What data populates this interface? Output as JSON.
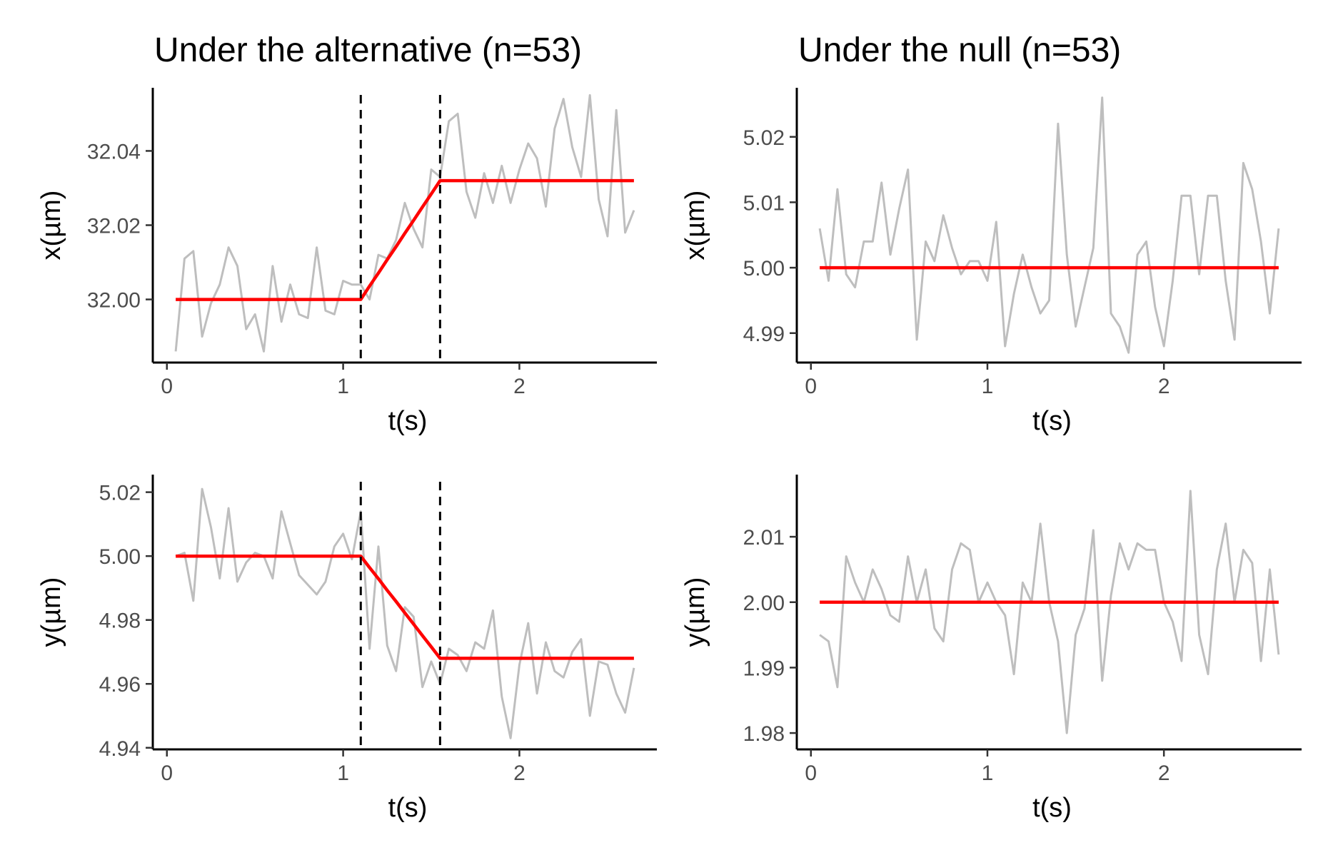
{
  "colors": {
    "observed": "#bebebe",
    "fit": "#ff0000",
    "changepoint": "#000000",
    "axis": "#000000",
    "tick_text": "#4d4d4d"
  },
  "chart_data": [
    {
      "type": "line",
      "title": "Under the alternative (n=53)",
      "xlabel": "t(s)",
      "ylabel": "x(µm)",
      "xlim": [
        -0.08,
        2.78
      ],
      "ylim": [
        31.983,
        32.057
      ],
      "x_ticks": [
        0,
        1,
        2
      ],
      "y_ticks": [
        32.0,
        32.02,
        32.04
      ],
      "x_tick_labels": [
        "0",
        "1",
        "2"
      ],
      "y_tick_labels": [
        "32.00",
        "32.02",
        "32.04"
      ],
      "grid": false,
      "legend": "none",
      "changepoints": [
        1.1,
        1.55
      ],
      "x": [
        0.05,
        0.1,
        0.15,
        0.2,
        0.25,
        0.3,
        0.35,
        0.4,
        0.45,
        0.5,
        0.55,
        0.6,
        0.65,
        0.7,
        0.75,
        0.8,
        0.85,
        0.9,
        0.95,
        1.0,
        1.05,
        1.1,
        1.15,
        1.2,
        1.25,
        1.3,
        1.35,
        1.4,
        1.45,
        1.5,
        1.55,
        1.6,
        1.65,
        1.7,
        1.75,
        1.8,
        1.85,
        1.9,
        1.95,
        2.0,
        2.05,
        2.1,
        2.15,
        2.2,
        2.25,
        2.3,
        2.35,
        2.4,
        2.45,
        2.5,
        2.55,
        2.6,
        2.65
      ],
      "series": [
        {
          "role": "observed",
          "values": [
            31.986,
            32.011,
            32.013,
            31.99,
            31.999,
            32.004,
            32.014,
            32.009,
            31.992,
            31.996,
            31.986,
            32.009,
            31.994,
            32.004,
            31.996,
            31.995,
            32.014,
            31.997,
            31.996,
            32.005,
            32.004,
            32.004,
            32.0,
            32.012,
            32.011,
            32.016,
            32.026,
            32.019,
            32.014,
            32.035,
            32.033,
            32.048,
            32.05,
            32.029,
            32.022,
            32.034,
            32.026,
            32.036,
            32.026,
            32.035,
            32.042,
            32.038,
            32.025,
            32.046,
            32.054,
            32.041,
            32.033,
            32.055,
            32.027,
            32.017,
            32.051,
            32.018,
            32.024
          ]
        },
        {
          "role": "fit",
          "values": [
            32.0,
            32.0,
            32.0,
            32.0,
            32.0,
            32.0,
            32.0,
            32.0,
            32.0,
            32.0,
            32.0,
            32.0,
            32.0,
            32.0,
            32.0,
            32.0,
            32.0,
            32.0,
            32.0,
            32.0,
            32.0,
            32.0,
            32.0036,
            32.0071,
            32.0107,
            32.0142,
            32.0178,
            32.0213,
            32.0249,
            32.0284,
            32.032,
            32.032,
            32.032,
            32.032,
            32.032,
            32.032,
            32.032,
            32.032,
            32.032,
            32.032,
            32.032,
            32.032,
            32.032,
            32.032,
            32.032,
            32.032,
            32.032,
            32.032,
            32.032,
            32.032,
            32.032,
            32.032,
            32.032
          ]
        }
      ]
    },
    {
      "type": "line",
      "title": "Under the null (n=53)",
      "xlabel": "t(s)",
      "ylabel": "x(µm)",
      "xlim": [
        -0.08,
        2.78
      ],
      "ylim": [
        4.9855,
        5.0275
      ],
      "x_ticks": [
        0,
        1,
        2
      ],
      "y_ticks": [
        4.99,
        5.0,
        5.01,
        5.02
      ],
      "x_tick_labels": [
        "0",
        "1",
        "2"
      ],
      "y_tick_labels": [
        "4.99",
        "5.00",
        "5.01",
        "5.02"
      ],
      "grid": false,
      "legend": "none",
      "changepoints": [],
      "x": [
        0.05,
        0.1,
        0.15,
        0.2,
        0.25,
        0.3,
        0.35,
        0.4,
        0.45,
        0.5,
        0.55,
        0.6,
        0.65,
        0.7,
        0.75,
        0.8,
        0.85,
        0.9,
        0.95,
        1.0,
        1.05,
        1.1,
        1.15,
        1.2,
        1.25,
        1.3,
        1.35,
        1.4,
        1.45,
        1.5,
        1.55,
        1.6,
        1.65,
        1.7,
        1.75,
        1.8,
        1.85,
        1.9,
        1.95,
        2.0,
        2.05,
        2.1,
        2.15,
        2.2,
        2.25,
        2.3,
        2.35,
        2.4,
        2.45,
        2.5,
        2.55,
        2.6,
        2.65
      ],
      "series": [
        {
          "role": "observed",
          "values": [
            5.006,
            4.998,
            5.012,
            4.999,
            4.997,
            5.004,
            5.004,
            5.013,
            5.002,
            5.009,
            5.015,
            4.989,
            5.004,
            5.001,
            5.008,
            5.003,
            4.999,
            5.001,
            5.001,
            4.998,
            5.007,
            4.988,
            4.996,
            5.002,
            4.997,
            4.993,
            4.995,
            5.022,
            5.002,
            4.991,
            4.997,
            5.003,
            5.026,
            4.993,
            4.991,
            4.987,
            5.002,
            5.004,
            4.994,
            4.988,
            4.998,
            5.011,
            5.011,
            4.999,
            5.011,
            5.011,
            4.998,
            4.989,
            5.016,
            5.012,
            5.004,
            4.993,
            5.006
          ]
        },
        {
          "role": "fit",
          "values": [
            5.0,
            5.0,
            5.0,
            5.0,
            5.0,
            5.0,
            5.0,
            5.0,
            5.0,
            5.0,
            5.0,
            5.0,
            5.0,
            5.0,
            5.0,
            5.0,
            5.0,
            5.0,
            5.0,
            5.0,
            5.0,
            5.0,
            5.0,
            5.0,
            5.0,
            5.0,
            5.0,
            5.0,
            5.0,
            5.0,
            5.0,
            5.0,
            5.0,
            5.0,
            5.0,
            5.0,
            5.0,
            5.0,
            5.0,
            5.0,
            5.0,
            5.0,
            5.0,
            5.0,
            5.0,
            5.0,
            5.0,
            5.0,
            5.0,
            5.0,
            5.0,
            5.0,
            5.0
          ]
        }
      ]
    },
    {
      "type": "line",
      "title": "",
      "xlabel": "t(s)",
      "ylabel": "y(µm)",
      "xlim": [
        -0.08,
        2.78
      ],
      "ylim": [
        4.9395,
        5.0255
      ],
      "x_ticks": [
        0,
        1,
        2
      ],
      "y_ticks": [
        4.94,
        4.96,
        4.98,
        5.0,
        5.02
      ],
      "x_tick_labels": [
        "0",
        "1",
        "2"
      ],
      "y_tick_labels": [
        "4.94",
        "4.96",
        "4.98",
        "5.00",
        "5.02"
      ],
      "grid": false,
      "legend": "none",
      "changepoints": [
        1.1,
        1.55
      ],
      "x": [
        0.05,
        0.1,
        0.15,
        0.2,
        0.25,
        0.3,
        0.35,
        0.4,
        0.45,
        0.5,
        0.55,
        0.6,
        0.65,
        0.7,
        0.75,
        0.8,
        0.85,
        0.9,
        0.95,
        1.0,
        1.05,
        1.1,
        1.15,
        1.2,
        1.25,
        1.3,
        1.35,
        1.4,
        1.45,
        1.5,
        1.55,
        1.6,
        1.65,
        1.7,
        1.75,
        1.8,
        1.85,
        1.9,
        1.95,
        2.0,
        2.05,
        2.1,
        2.15,
        2.2,
        2.25,
        2.3,
        2.35,
        2.4,
        2.45,
        2.5,
        2.55,
        2.6,
        2.65
      ],
      "series": [
        {
          "role": "observed",
          "values": [
            5.0,
            5.001,
            4.986,
            5.021,
            5.009,
            4.993,
            5.015,
            4.992,
            4.998,
            5.001,
            5.0,
            4.993,
            5.014,
            5.004,
            4.994,
            4.991,
            4.988,
            4.992,
            5.003,
            5.007,
            4.999,
            5.014,
            4.971,
            5.003,
            4.972,
            4.964,
            4.984,
            4.981,
            4.959,
            4.967,
            4.96,
            4.971,
            4.969,
            4.964,
            4.973,
            4.971,
            4.983,
            4.956,
            4.943,
            4.966,
            4.979,
            4.957,
            4.973,
            4.964,
            4.962,
            4.97,
            4.974,
            4.95,
            4.967,
            4.966,
            4.957,
            4.951,
            4.965
          ]
        },
        {
          "role": "fit",
          "values": [
            5.0,
            5.0,
            5.0,
            5.0,
            5.0,
            5.0,
            5.0,
            5.0,
            5.0,
            5.0,
            5.0,
            5.0,
            5.0,
            5.0,
            5.0,
            5.0,
            5.0,
            5.0,
            5.0,
            5.0,
            5.0,
            5.0,
            4.9964,
            4.9929,
            4.9893,
            4.9858,
            4.9822,
            4.9787,
            4.9751,
            4.9716,
            4.968,
            4.968,
            4.968,
            4.968,
            4.968,
            4.968,
            4.968,
            4.968,
            4.968,
            4.968,
            4.968,
            4.968,
            4.968,
            4.968,
            4.968,
            4.968,
            4.968,
            4.968,
            4.968,
            4.968,
            4.968,
            4.968,
            4.968
          ]
        }
      ]
    },
    {
      "type": "line",
      "title": "",
      "xlabel": "t(s)",
      "ylabel": "y(µm)",
      "xlim": [
        -0.08,
        2.78
      ],
      "ylim": [
        1.9775,
        2.0195
      ],
      "x_ticks": [
        0,
        1,
        2
      ],
      "y_ticks": [
        1.98,
        1.99,
        2.0,
        2.01
      ],
      "x_tick_labels": [
        "0",
        "1",
        "2"
      ],
      "y_tick_labels": [
        "1.98",
        "1.99",
        "2.00",
        "2.01"
      ],
      "grid": false,
      "legend": "none",
      "changepoints": [],
      "x": [
        0.05,
        0.1,
        0.15,
        0.2,
        0.25,
        0.3,
        0.35,
        0.4,
        0.45,
        0.5,
        0.55,
        0.6,
        0.65,
        0.7,
        0.75,
        0.8,
        0.85,
        0.9,
        0.95,
        1.0,
        1.05,
        1.1,
        1.15,
        1.2,
        1.25,
        1.3,
        1.35,
        1.4,
        1.45,
        1.5,
        1.55,
        1.6,
        1.65,
        1.7,
        1.75,
        1.8,
        1.85,
        1.9,
        1.95,
        2.0,
        2.05,
        2.1,
        2.15,
        2.2,
        2.25,
        2.3,
        2.35,
        2.4,
        2.45,
        2.5,
        2.55,
        2.6,
        2.65
      ],
      "series": [
        {
          "role": "observed",
          "values": [
            1.995,
            1.994,
            1.987,
            2.007,
            2.003,
            2.0,
            2.005,
            2.002,
            1.998,
            1.997,
            2.007,
            2.0,
            2.005,
            1.996,
            1.994,
            2.005,
            2.009,
            2.008,
            2.0,
            2.003,
            2.0,
            1.998,
            1.989,
            2.003,
            2.0,
            2.012,
            2.0,
            1.994,
            1.98,
            1.995,
            1.999,
            2.011,
            1.988,
            2.001,
            2.009,
            2.005,
            2.009,
            2.008,
            2.008,
            2.0,
            1.997,
            1.991,
            2.017,
            1.995,
            1.989,
            2.005,
            2.012,
            2.0,
            2.008,
            2.006,
            1.991,
            2.005,
            1.992
          ]
        },
        {
          "role": "fit",
          "values": [
            2.0,
            2.0,
            2.0,
            2.0,
            2.0,
            2.0,
            2.0,
            2.0,
            2.0,
            2.0,
            2.0,
            2.0,
            2.0,
            2.0,
            2.0,
            2.0,
            2.0,
            2.0,
            2.0,
            2.0,
            2.0,
            2.0,
            2.0,
            2.0,
            2.0,
            2.0,
            2.0,
            2.0,
            2.0,
            2.0,
            2.0,
            2.0,
            2.0,
            2.0,
            2.0,
            2.0,
            2.0,
            2.0,
            2.0,
            2.0,
            2.0,
            2.0,
            2.0,
            2.0,
            2.0,
            2.0,
            2.0,
            2.0,
            2.0,
            2.0,
            2.0,
            2.0,
            2.0
          ]
        }
      ]
    }
  ]
}
